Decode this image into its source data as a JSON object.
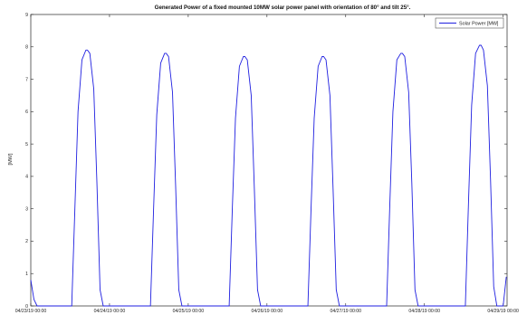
{
  "chart_data": {
    "type": "line",
    "title": "Generated Power of a fixed mounted 10MW solar power panel with orientation of 80° and tilt 25°.",
    "ylabel": "[MW]",
    "xlabel": "",
    "ylim": [
      0,
      9
    ],
    "yticks": [
      0,
      1,
      2,
      3,
      4,
      5,
      6,
      7,
      8,
      9
    ],
    "xlim": [
      0,
      6.05
    ],
    "xticks": [
      {
        "value": 0,
        "label": "04/23/19 00:00"
      },
      {
        "value": 1,
        "label": "04/24/19 00:00"
      },
      {
        "value": 2,
        "label": "04/25/19 00:00"
      },
      {
        "value": 3,
        "label": "04/26/19 00:00"
      },
      {
        "value": 4,
        "label": "04/27/19 00:00"
      },
      {
        "value": 5,
        "label": "04/28/19 00:00"
      },
      {
        "value": 6,
        "label": "04/29/19 00:00"
      }
    ],
    "grid": false,
    "legend_position": "top-right",
    "series": [
      {
        "name": "Solar Power [MW]",
        "color": "#1f1fe0",
        "x": [
          0.0,
          0.04,
          0.08,
          0.52,
          0.56,
          0.6,
          0.65,
          0.7,
          0.72,
          0.75,
          0.8,
          0.84,
          0.88,
          0.92,
          1.0,
          1.04,
          1.08,
          1.52,
          1.56,
          1.6,
          1.65,
          1.7,
          1.72,
          1.75,
          1.8,
          1.84,
          1.88,
          1.92,
          2.0,
          2.04,
          2.08,
          2.52,
          2.56,
          2.6,
          2.65,
          2.7,
          2.72,
          2.75,
          2.8,
          2.84,
          2.88,
          2.92,
          3.0,
          3.04,
          3.08,
          3.52,
          3.56,
          3.6,
          3.65,
          3.7,
          3.72,
          3.75,
          3.8,
          3.84,
          3.88,
          3.92,
          4.0,
          4.04,
          4.08,
          4.52,
          4.56,
          4.6,
          4.65,
          4.7,
          4.72,
          4.75,
          4.8,
          4.84,
          4.88,
          4.92,
          5.0,
          5.04,
          5.08,
          5.52,
          5.56,
          5.6,
          5.65,
          5.7,
          5.72,
          5.75,
          5.8,
          5.84,
          5.88,
          5.92,
          6.0,
          6.04
        ],
        "values": [
          0.8,
          0.2,
          0.0,
          0.0,
          3.0,
          6.0,
          7.6,
          7.9,
          7.9,
          7.8,
          6.7,
          3.8,
          0.5,
          0.0,
          0.0,
          0.0,
          0.0,
          0.0,
          3.0,
          5.9,
          7.5,
          7.8,
          7.8,
          7.7,
          6.6,
          3.7,
          0.5,
          0.0,
          0.0,
          0.0,
          0.0,
          0.0,
          3.0,
          5.8,
          7.4,
          7.7,
          7.7,
          7.6,
          6.5,
          3.6,
          0.5,
          0.0,
          0.0,
          0.0,
          0.0,
          0.0,
          3.0,
          5.8,
          7.4,
          7.7,
          7.7,
          7.6,
          6.5,
          3.6,
          0.5,
          0.0,
          0.0,
          0.0,
          0.0,
          0.0,
          3.1,
          6.0,
          7.6,
          7.8,
          7.8,
          7.7,
          6.6,
          3.8,
          0.5,
          0.0,
          0.0,
          0.0,
          0.0,
          0.0,
          3.2,
          6.2,
          7.8,
          8.05,
          8.05,
          7.9,
          6.8,
          3.9,
          0.6,
          0.0,
          0.0,
          0.9
        ]
      }
    ]
  }
}
